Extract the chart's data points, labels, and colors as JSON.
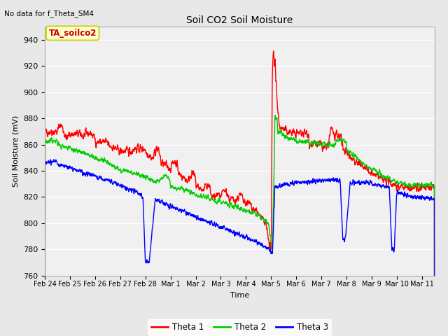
{
  "title": "Soil CO2 Soil Moisture",
  "xlabel": "Time",
  "ylabel": "Soil Moisture (mV)",
  "top_left_text": "No data for f_Theta_SM4",
  "annotation_box": "TA_soilco2",
  "ylim": [
    760,
    950
  ],
  "yticks": [
    760,
    780,
    800,
    820,
    840,
    860,
    880,
    900,
    920,
    940
  ],
  "xlim": [
    0,
    15.5
  ],
  "xtick_labels": [
    "Feb 24",
    "Feb 25",
    "Feb 26",
    "Feb 27",
    "Feb 28",
    "Mar 1",
    "Mar 2",
    "Mar 3",
    "Mar 4",
    "Mar 5",
    "Mar 6",
    "Mar 7",
    "Mar 8",
    "Mar 9",
    "Mar 10",
    "Mar 11"
  ],
  "xtick_positions": [
    0,
    1,
    2,
    3,
    4,
    5,
    6,
    7,
    8,
    9,
    10,
    11,
    12,
    13,
    14,
    15
  ],
  "colors": {
    "theta1": "#ff0000",
    "theta2": "#00cc00",
    "theta3": "#0000ff",
    "background": "#e8e8e8",
    "plot_bg": "#f0f0f0",
    "annotation_bg": "#ffffcc",
    "annotation_border": "#cccc00",
    "annotation_text": "#cc0000"
  },
  "legend_labels": [
    "Theta 1",
    "Theta 2",
    "Theta 3"
  ],
  "grid_color": "#ffffff",
  "linewidth": 1.0
}
